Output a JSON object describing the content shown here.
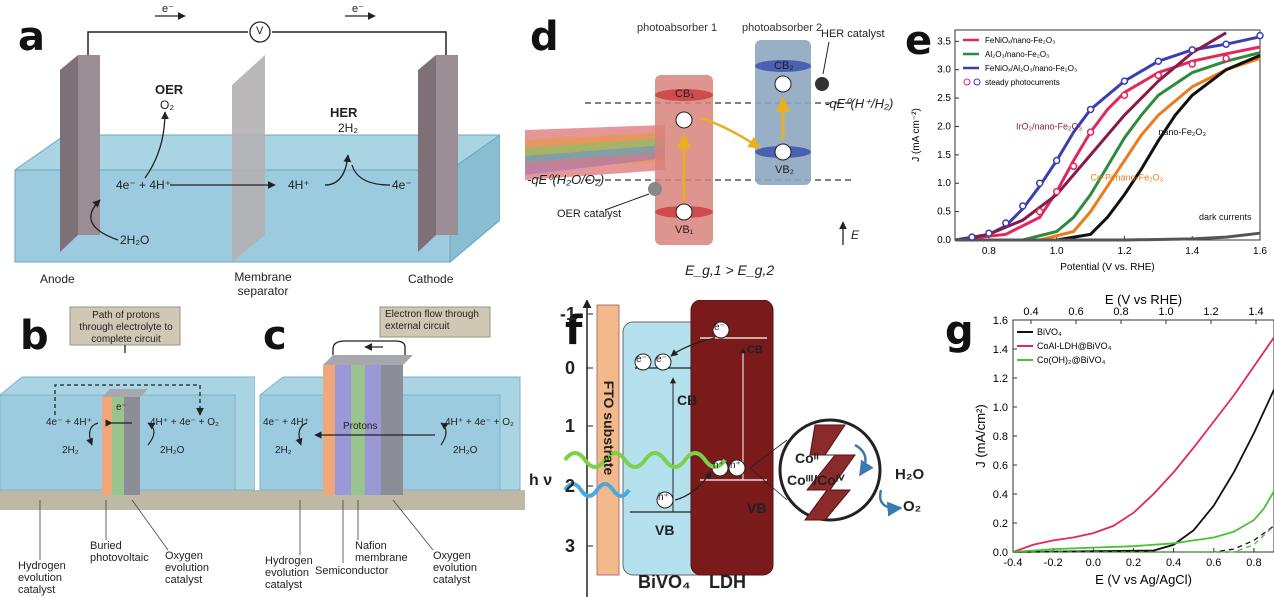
{
  "panels": {
    "a": {
      "label": "a",
      "electron1": "e⁻",
      "electron2": "e⁻",
      "voltmeter": "V",
      "oer": "OER",
      "oer_product": "O₂",
      "her": "HER",
      "her_product": "2H₂",
      "anode_rxn": "4e⁻ + 4H⁺",
      "water": "2H₂O",
      "mid_rxn": "4H⁺",
      "cathode_rxn": "4e⁻",
      "anode": "Anode",
      "membrane": "Membrane separator",
      "cathode": "Cathode"
    },
    "b": {
      "label": "b",
      "callout": "Path of protons through electrolyte to complete circuit",
      "left_rxn": "4e⁻ + 4H⁺",
      "left_product": "2H₂",
      "center_e": "e⁻",
      "right_rxn": "4H⁺ + 4e⁻ + O₂",
      "right_product": "2H₂O",
      "lbl_her": "Hydrogen evolution catalyst",
      "lbl_pv": "Buried photovoltaic",
      "lbl_oer": "Oxygen evolution catalyst"
    },
    "c": {
      "label": "c",
      "callout": "Electron flow through external circuit",
      "left_rxn": "4e⁻ + 4H⁺",
      "left_product": "2H₂",
      "protons": "Protons",
      "right_rxn": "4H⁺ + 4e⁻ + O₂",
      "right_product": "2H₂O",
      "lbl_her": "Hydrogen evolution catalyst",
      "lbl_semi": "Semiconductor",
      "lbl_nafion": "Nafion membrane",
      "lbl_oer": "Oxygen evolution catalyst"
    },
    "d": {
      "label": "d",
      "pa1": "photoabsorber 1",
      "pa2": "photoabsorber 2",
      "her_cat": "HER catalyst",
      "oer_cat": "OER catalyst",
      "cb1": "CB₁",
      "cb2": "CB₂",
      "vb1": "VB₁",
      "vb2": "VB₂",
      "her_pot": "-qE⁰(H⁺/H₂)",
      "oer_pot": "-qE⁰(H₂O/O₂)",
      "e_axis": "E",
      "gap": "E_g,1  >  E_g,2",
      "minus": "−",
      "plus": "+"
    },
    "f": {
      "label": "f",
      "fto": "FTO substrate",
      "cb": "CB",
      "vb": "VB",
      "bivo4": "BiVO₄",
      "ldh": "LDH",
      "hv": "h ν",
      "e": "e⁻",
      "h": "h⁺",
      "co_ii": "Coᴵᴵ",
      "co_iii_iv": "Coᴵᴵᴵ/Coᴵⱽ",
      "h2o": "H₂O",
      "o2": "O₂",
      "yticks": [
        "-1",
        "0",
        "1",
        "2",
        "3"
      ]
    }
  },
  "chart_data": [
    {
      "id": "e",
      "type": "line",
      "panel_label": "e",
      "xlabel": "Potential (V vs. RHE)",
      "ylabel": "J (mA cm⁻²)",
      "xlim": [
        0.7,
        1.6
      ],
      "ylim": [
        0,
        3.7
      ],
      "xticks": [
        "0.8",
        "1.0",
        "1.2",
        "1.4",
        "1.6"
      ],
      "yticks": [
        "0.0",
        "0.5",
        "1.0",
        "1.5",
        "2.0",
        "2.5",
        "3.0",
        "3.5"
      ],
      "legend": [
        "FeNiOₓ/nano-Fe₂O₃",
        "Al₂O₃/nano-Fe₂O₃",
        "FeNiOₓ/Al₂O₃/nano-Fe₂O₃",
        "steady photocurrents"
      ],
      "annotations": [
        "nano-Fe₂O₃",
        "IrO₂/nano-Fe₂O₃",
        "Co-Pi/nano-Fe₂O₃",
        "dark currents"
      ],
      "series": [
        {
          "name": "FeNiOₓ/nano-Fe₂O₃",
          "color": "#e0295a",
          "x": [
            0.7,
            0.85,
            0.95,
            1.0,
            1.05,
            1.1,
            1.15,
            1.2,
            1.3,
            1.4,
            1.5,
            1.6
          ],
          "y": [
            0,
            0.1,
            0.4,
            0.85,
            1.4,
            1.9,
            2.3,
            2.6,
            2.95,
            3.15,
            3.28,
            3.4
          ]
        },
        {
          "name": "Al₂O₃/nano-Fe₂O₃",
          "color": "#2e8b3a",
          "x": [
            0.9,
            1.0,
            1.05,
            1.1,
            1.15,
            1.2,
            1.25,
            1.3,
            1.4,
            1.5,
            1.6
          ],
          "y": [
            0,
            0.15,
            0.4,
            0.8,
            1.3,
            1.8,
            2.2,
            2.55,
            2.95,
            3.15,
            3.3
          ]
        },
        {
          "name": "FeNiOₓ/Al₂O₃/nano-Fe₂O₃",
          "color": "#3a3eb0",
          "x": [
            0.7,
            0.8,
            0.85,
            0.9,
            0.95,
            1.0,
            1.05,
            1.1,
            1.2,
            1.3,
            1.4,
            1.5,
            1.6
          ],
          "y": [
            0,
            0.1,
            0.25,
            0.55,
            0.95,
            1.4,
            1.9,
            2.3,
            2.8,
            3.15,
            3.35,
            3.45,
            3.58
          ]
        },
        {
          "name": "IrO₂/nano-Fe₂O₃",
          "color": "#8a1a4a",
          "x": [
            0.72,
            0.8,
            0.9,
            1.0,
            1.1,
            1.2,
            1.3,
            1.4,
            1.5
          ],
          "y": [
            0,
            0.1,
            0.35,
            0.8,
            1.5,
            2.2,
            2.8,
            3.3,
            3.65
          ]
        },
        {
          "name": "Co-Pi/nano-Fe₂O₃",
          "color": "#f07a1a",
          "x": [
            0.95,
            1.05,
            1.1,
            1.15,
            1.2,
            1.25,
            1.3,
            1.4,
            1.5,
            1.6
          ],
          "y": [
            0,
            0.15,
            0.5,
            0.95,
            1.4,
            1.85,
            2.2,
            2.7,
            3.0,
            3.2
          ]
        },
        {
          "name": "nano-Fe₂O₃",
          "color": "#111111",
          "x": [
            1.0,
            1.1,
            1.15,
            1.2,
            1.25,
            1.3,
            1.35,
            1.4,
            1.5,
            1.6
          ],
          "y": [
            0,
            0.1,
            0.4,
            0.8,
            1.25,
            1.75,
            2.2,
            2.55,
            3.0,
            3.25
          ]
        },
        {
          "name": "dark currents",
          "color": "#555555",
          "x": [
            0.7,
            1.2,
            1.4,
            1.5,
            1.6
          ],
          "y": [
            0,
            0,
            0.02,
            0.05,
            0.12
          ]
        }
      ],
      "markers": [
        {
          "color": "#e0295a",
          "x": [
            0.95,
            1.0,
            1.05,
            1.1,
            1.2,
            1.3,
            1.4,
            1.5
          ],
          "y": [
            0.5,
            0.85,
            1.3,
            1.9,
            2.55,
            2.9,
            3.1,
            3.2
          ]
        },
        {
          "color": "#3a3eb0",
          "x": [
            0.75,
            0.8,
            0.85,
            0.9,
            0.95,
            1.0,
            1.1,
            1.2,
            1.3,
            1.4,
            1.5,
            1.6
          ],
          "y": [
            0.05,
            0.12,
            0.3,
            0.6,
            1.0,
            1.4,
            2.3,
            2.8,
            3.15,
            3.35,
            3.45,
            3.6
          ]
        }
      ]
    },
    {
      "id": "g",
      "type": "line",
      "panel_label": "g",
      "xlabel": "E (V vs Ag/AgCl)",
      "top_xlabel": "E (V vs RHE)",
      "ylabel": "J (mA/cm²)",
      "xlim": [
        -0.4,
        0.9
      ],
      "ylim": [
        0,
        1.6
      ],
      "xticks": [
        "-0.4",
        "-0.2",
        "0.0",
        "0.2",
        "0.4",
        "0.6",
        "0.8"
      ],
      "top_xticks": [
        "0.4",
        "0.6",
        "0.8",
        "1.0",
        "1.2",
        "1.4"
      ],
      "yticks": [
        "0.0",
        "0.2",
        "0.4",
        "0.6",
        "0.8",
        "1.0",
        "1.2",
        "1.4",
        "1.6"
      ],
      "legend": [
        "BiVO₄",
        "CoAl-LDH@BiVO₄",
        "Co(OH)₂@BiVO₄"
      ],
      "series": [
        {
          "name": "BiVO₄",
          "color": "#111111",
          "x": [
            -0.4,
            0.3,
            0.4,
            0.5,
            0.6,
            0.7,
            0.8,
            0.9
          ],
          "y": [
            0,
            0.01,
            0.05,
            0.15,
            0.32,
            0.55,
            0.82,
            1.12
          ]
        },
        {
          "name": "CoAl-LDH@BiVO₄",
          "color": "#e0295a",
          "x": [
            -0.4,
            -0.3,
            -0.2,
            -0.1,
            0.0,
            0.1,
            0.2,
            0.3,
            0.4,
            0.5,
            0.6,
            0.7,
            0.8,
            0.9
          ],
          "y": [
            0,
            0.05,
            0.08,
            0.1,
            0.13,
            0.18,
            0.27,
            0.4,
            0.55,
            0.72,
            0.9,
            1.08,
            1.28,
            1.48
          ]
        },
        {
          "name": "Co(OH)₂@BiVO₄",
          "color": "#4cbf3a",
          "x": [
            -0.4,
            -0.2,
            0.0,
            0.2,
            0.4,
            0.5,
            0.6,
            0.7,
            0.8,
            0.85,
            0.9
          ],
          "y": [
            0,
            0.02,
            0.03,
            0.04,
            0.06,
            0.08,
            0.1,
            0.14,
            0.22,
            0.3,
            0.42
          ]
        },
        {
          "name": "BiVO₄ dark",
          "color": "#111111",
          "dashed": true,
          "x": [
            -0.4,
            0.6,
            0.7,
            0.8,
            0.9
          ],
          "y": [
            0,
            0,
            0.02,
            0.08,
            0.18
          ]
        },
        {
          "name": "Co(OH)₂ dark",
          "color": "#4cbf3a",
          "dashed": true,
          "x": [
            -0.4,
            0.7,
            0.8,
            0.9
          ],
          "y": [
            0,
            0,
            0.05,
            0.18
          ]
        }
      ]
    }
  ]
}
